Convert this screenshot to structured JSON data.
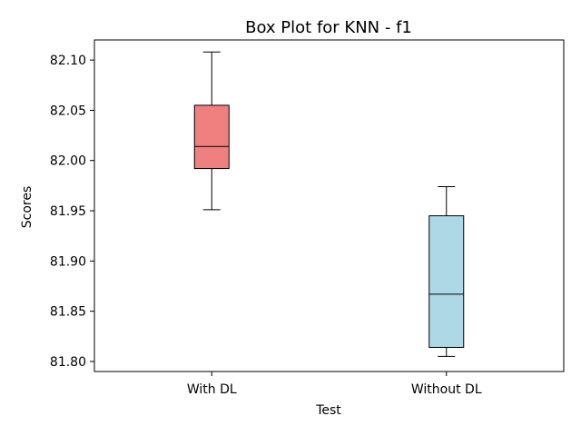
{
  "chart_data": {
    "type": "box",
    "title": "Box Plot for KNN - f1",
    "xlabel": "Test",
    "ylabel": "Scores",
    "ylim": [
      81.79,
      82.12
    ],
    "yticks": [
      "81.80",
      "81.85",
      "81.90",
      "81.95",
      "82.00",
      "82.05",
      "82.10"
    ],
    "grid": false,
    "categories": [
      "With DL",
      "Without DL"
    ],
    "boxes": [
      {
        "category": "With DL",
        "min": 81.951,
        "q1": 81.992,
        "median": 82.014,
        "q3": 82.055,
        "max": 82.108,
        "color": "#f08080"
      },
      {
        "category": "Without DL",
        "min": 81.805,
        "q1": 81.814,
        "median": 81.867,
        "q3": 81.945,
        "max": 81.974,
        "color": "#add8e6"
      }
    ]
  }
}
